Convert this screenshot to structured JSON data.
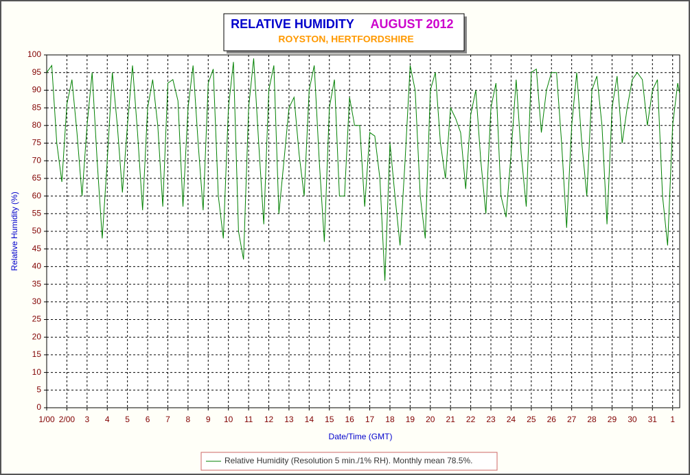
{
  "chart_data": {
    "type": "line",
    "title": "RELATIVE HUMIDITY",
    "title_period": "AUGUST 2012",
    "subtitle": "ROYSTON, HERTFORDSHIRE",
    "y_label": "Relative Humidity (%)",
    "x_label": "Date/Time (GMT)",
    "xlim": [
      1,
      32.35
    ],
    "ylim": [
      0,
      100
    ],
    "xticks": [
      {
        "value": 1,
        "label": "1/00"
      },
      {
        "value": 2,
        "label": "2/00"
      },
      3,
      4,
      5,
      6,
      7,
      8,
      9,
      10,
      11,
      12,
      13,
      14,
      15,
      16,
      17,
      18,
      19,
      20,
      21,
      22,
      23,
      24,
      25,
      26,
      27,
      28,
      29,
      30,
      31,
      {
        "value": 32,
        "label": "1"
      }
    ],
    "yticks": [
      0,
      5,
      10,
      15,
      20,
      25,
      30,
      35,
      40,
      45,
      50,
      55,
      60,
      65,
      70,
      75,
      80,
      85,
      90,
      95,
      100
    ],
    "grid": true,
    "legend": "bottom",
    "x": [
      1,
      1.25,
      1.5,
      1.75,
      2,
      2.25,
      2.5,
      2.75,
      3,
      3.25,
      3.5,
      3.75,
      4,
      4.25,
      4.5,
      4.75,
      5,
      5.25,
      5.5,
      5.75,
      6,
      6.25,
      6.5,
      6.75,
      7,
      7.25,
      7.5,
      7.75,
      8,
      8.25,
      8.5,
      8.75,
      9,
      9.25,
      9.5,
      9.75,
      10,
      10.25,
      10.5,
      10.75,
      11,
      11.25,
      11.5,
      11.75,
      12,
      12.25,
      12.5,
      12.75,
      13,
      13.25,
      13.5,
      13.75,
      14,
      14.25,
      14.5,
      14.75,
      15,
      15.25,
      15.5,
      15.75,
      16,
      16.25,
      16.5,
      16.75,
      17,
      17.25,
      17.5,
      17.75,
      18,
      18.25,
      18.5,
      18.75,
      19,
      19.25,
      19.5,
      19.75,
      20,
      20.25,
      20.5,
      20.75,
      21,
      21.25,
      21.5,
      21.75,
      22,
      22.25,
      22.5,
      22.75,
      23,
      23.25,
      23.5,
      23.75,
      24,
      24.25,
      24.5,
      24.75,
      25,
      25.25,
      25.5,
      25.75,
      26,
      26.25,
      26.5,
      26.75,
      27,
      27.25,
      27.5,
      27.75,
      28,
      28.25,
      28.5,
      28.75,
      29,
      29.25,
      29.5,
      29.75,
      30,
      30.25,
      30.5,
      30.75,
      31,
      31.25,
      31.5,
      31.75,
      32,
      32.25,
      32.35
    ],
    "series": [
      {
        "name": "Relative Humidity (Resolution 5 min./1% RH). Monthly mean 78.5%.",
        "color": "#008000",
        "values": [
          95,
          97,
          75,
          64,
          86,
          93,
          78,
          60,
          80,
          95,
          70,
          48,
          70,
          95,
          80,
          61,
          80,
          97,
          78,
          56,
          85,
          93,
          80,
          57,
          92,
          93,
          87,
          57,
          85,
          97,
          75,
          56,
          92,
          96,
          60,
          48,
          85,
          98,
          50,
          42,
          85,
          99,
          75,
          52,
          90,
          97,
          55,
          70,
          85,
          88,
          72,
          60,
          90,
          97,
          70,
          47,
          85,
          93,
          60,
          60,
          88,
          80,
          80,
          57,
          78,
          77,
          65,
          36,
          75,
          60,
          46,
          70,
          97,
          90,
          60,
          48,
          90,
          95,
          75,
          65,
          85,
          82,
          78,
          62,
          83,
          90,
          70,
          55,
          85,
          92,
          60,
          54,
          72,
          93,
          72,
          57,
          95,
          96,
          78,
          90,
          95,
          95,
          75,
          51,
          80,
          95,
          75,
          60,
          90,
          94,
          80,
          52,
          85,
          94,
          75,
          85,
          93,
          95,
          93,
          80,
          90,
          93,
          60,
          46,
          80,
          92,
          89
        ]
      }
    ]
  }
}
